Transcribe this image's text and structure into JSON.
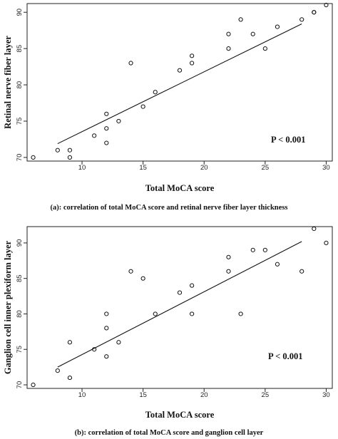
{
  "chart_data": [
    {
      "type": "scatter",
      "xlabel": "Total MoCA score",
      "ylabel": "Retinal nerve fiber layer",
      "caption": "(a): correlation of total MoCA score and retinal nerve fiber layer thickness",
      "annotation": "P < 0.001",
      "xlim": [
        5.5,
        30.5
      ],
      "ylim": [
        69.5,
        91.2
      ],
      "xticks": [
        10,
        15,
        20,
        25,
        30
      ],
      "yticks": [
        70,
        75,
        80,
        85,
        90
      ],
      "points": [
        {
          "x": 6,
          "y": 70
        },
        {
          "x": 8,
          "y": 71
        },
        {
          "x": 9,
          "y": 71
        },
        {
          "x": 9,
          "y": 70
        },
        {
          "x": 11,
          "y": 73
        },
        {
          "x": 12,
          "y": 76
        },
        {
          "x": 12,
          "y": 74
        },
        {
          "x": 12,
          "y": 72
        },
        {
          "x": 13,
          "y": 75
        },
        {
          "x": 14,
          "y": 83
        },
        {
          "x": 15,
          "y": 77
        },
        {
          "x": 16,
          "y": 79
        },
        {
          "x": 18,
          "y": 82
        },
        {
          "x": 19,
          "y": 84
        },
        {
          "x": 19,
          "y": 83
        },
        {
          "x": 22,
          "y": 87
        },
        {
          "x": 22,
          "y": 85
        },
        {
          "x": 23,
          "y": 89
        },
        {
          "x": 24,
          "y": 87
        },
        {
          "x": 25,
          "y": 85
        },
        {
          "x": 26,
          "y": 88
        },
        {
          "x": 28,
          "y": 89
        },
        {
          "x": 29,
          "y": 90
        },
        {
          "x": 29,
          "y": 90
        },
        {
          "x": 30,
          "y": 91
        }
      ],
      "fit_line": {
        "x": [
          8,
          28
        ],
        "y": [
          71.9,
          88.4
        ]
      },
      "grid": false
    },
    {
      "type": "scatter",
      "xlabel": "Total MoCA score",
      "ylabel": "Ganglion cell inner plexiform layer",
      "caption": "(b): correlation of total MoCA score and ganglion cell layer",
      "annotation": "P < 0.001",
      "xlim": [
        5.5,
        30.5
      ],
      "ylim": [
        69.5,
        92.3
      ],
      "xticks": [
        10,
        15,
        20,
        25,
        30
      ],
      "yticks": [
        70,
        75,
        80,
        85,
        90
      ],
      "points": [
        {
          "x": 6,
          "y": 70
        },
        {
          "x": 8,
          "y": 72
        },
        {
          "x": 9,
          "y": 76
        },
        {
          "x": 9,
          "y": 71
        },
        {
          "x": 11,
          "y": 75
        },
        {
          "x": 12,
          "y": 80
        },
        {
          "x": 12,
          "y": 78
        },
        {
          "x": 12,
          "y": 74
        },
        {
          "x": 13,
          "y": 76
        },
        {
          "x": 14,
          "y": 86
        },
        {
          "x": 15,
          "y": 85
        },
        {
          "x": 16,
          "y": 80
        },
        {
          "x": 18,
          "y": 83
        },
        {
          "x": 19,
          "y": 84
        },
        {
          "x": 19,
          "y": 80
        },
        {
          "x": 22,
          "y": 88
        },
        {
          "x": 22,
          "y": 86
        },
        {
          "x": 23,
          "y": 80
        },
        {
          "x": 24,
          "y": 89
        },
        {
          "x": 25,
          "y": 89
        },
        {
          "x": 26,
          "y": 87
        },
        {
          "x": 28,
          "y": 86
        },
        {
          "x": 29,
          "y": 92
        },
        {
          "x": 30,
          "y": 90
        }
      ],
      "fit_line": {
        "x": [
          8,
          28
        ],
        "y": [
          72.5,
          90.2
        ]
      },
      "grid": false
    }
  ]
}
